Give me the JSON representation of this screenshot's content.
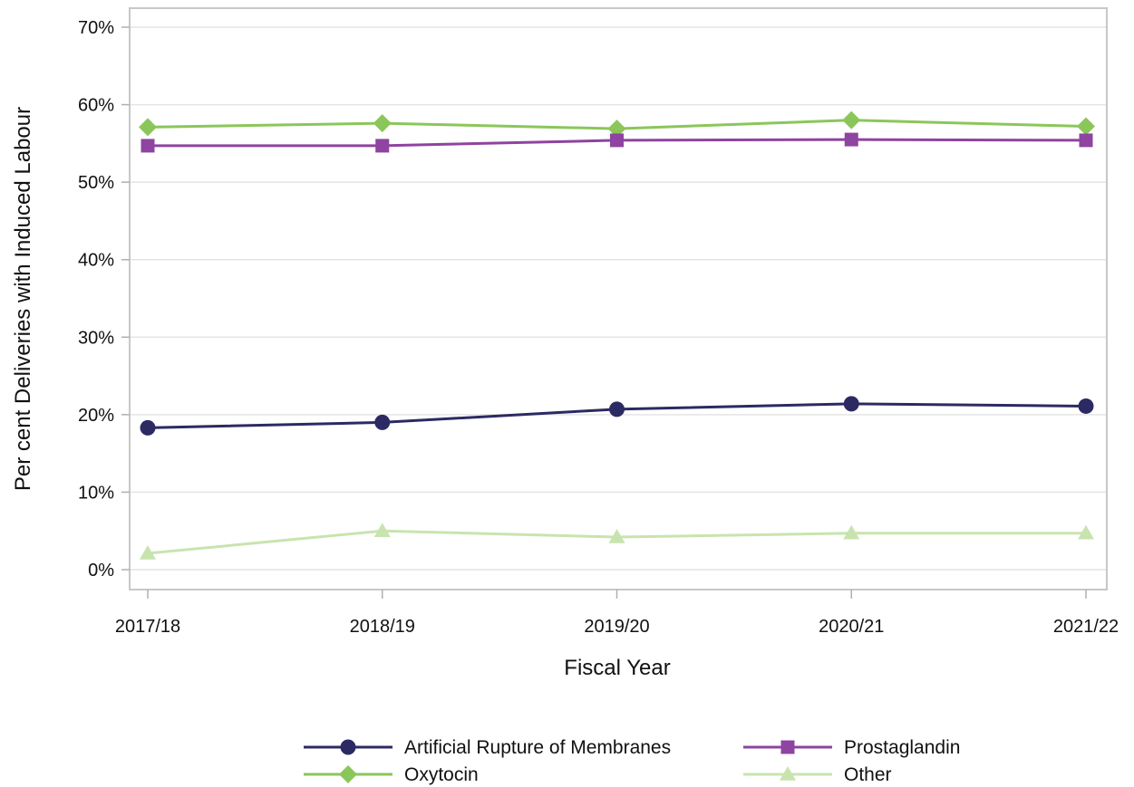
{
  "chart_data": {
    "type": "line",
    "title": "",
    "xlabel": "Fiscal Year",
    "ylabel": "Per cent Deliveries with Induced Labour",
    "categories": [
      "2017/18",
      "2018/19",
      "2019/20",
      "2020/21",
      "2021/22"
    ],
    "y_ticks": [
      "0%",
      "10%",
      "20%",
      "30%",
      "40%",
      "50%",
      "60%",
      "70%"
    ],
    "ylim": [
      0,
      70
    ],
    "grid": "horizontal",
    "legend_position": "bottom",
    "series": [
      {
        "name": "Artificial Rupture of Membranes",
        "values": [
          18.3,
          19.0,
          20.7,
          21.4,
          21.1
        ],
        "color": "#2c2a63",
        "marker": "circle"
      },
      {
        "name": "Prostaglandin",
        "values": [
          54.7,
          54.7,
          55.4,
          55.5,
          55.4
        ],
        "color": "#8e44a0",
        "marker": "square"
      },
      {
        "name": "Oxytocin",
        "values": [
          57.1,
          57.6,
          56.9,
          58.0,
          57.2
        ],
        "color": "#8bc65a",
        "marker": "diamond"
      },
      {
        "name": "Other",
        "values": [
          2.1,
          5.0,
          4.2,
          4.7,
          4.7
        ],
        "color": "#c8e4ae",
        "marker": "triangle"
      }
    ]
  }
}
